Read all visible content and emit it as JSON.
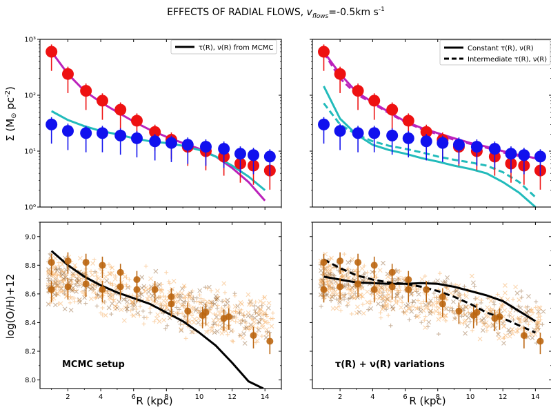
{
  "figure": {
    "title_main": "EFFECTS OF RADIAL FLOWS, ",
    "title_var": "v",
    "title_var_sub": "flows",
    "title_value": "=-0.5km s",
    "title_exp": "-1"
  },
  "axes": {
    "sigma_ylabel": "Σ (M",
    "sigma_ylabel_sub": "⊙",
    "sigma_ylabel_end": " pc",
    "sigma_ylabel_exp": "-2",
    "sigma_ylabel_close": ")",
    "oh_ylabel": "log(O/H)+12",
    "xlabel": "R (kpc)"
  },
  "legends": {
    "left": [
      {
        "label": "τ(R), ν(R) from MCMC",
        "style": "solid"
      }
    ],
    "right": [
      {
        "label": "Constant τ(R), ν(R)",
        "style": "solid"
      },
      {
        "label": "Intermediate τ(R), ν(R)",
        "style": "dashed"
      }
    ]
  },
  "annotations": {
    "left": "MCMC setup",
    "right": "τ(R) + ν(R) variations"
  },
  "colors": {
    "red_points": "#ee1111",
    "blue_points": "#1111ee",
    "magenta_line": "#bb22bb",
    "cyan_line": "#22bbbb",
    "oh_points": "#bb6611",
    "scatter_light": "#f5b26b",
    "scatter_dark": "#8b5a2b"
  },
  "chart_data": [
    {
      "panel": "top-left",
      "type": "scatter",
      "xlim": [
        0.3,
        15
      ],
      "ylim": [
        1,
        1000
      ],
      "yscale": "log",
      "xticks": [
        2,
        4,
        6,
        8,
        10,
        12,
        14
      ],
      "yticks": [
        1,
        10,
        100,
        1000
      ],
      "ytick_labels": [
        "10⁰",
        "10¹",
        "10²",
        "10³"
      ],
      "series": [
        {
          "kind": "points",
          "color": "red",
          "x": [
            1.0,
            2.0,
            3.1,
            4.1,
            5.2,
            6.2,
            7.3,
            8.3,
            9.3,
            10.4,
            11.5,
            12.5,
            13.3,
            14.3
          ],
          "y": [
            600,
            240,
            120,
            80,
            55,
            35,
            22,
            16,
            12,
            10,
            8,
            6,
            5.5,
            4.5
          ]
        },
        {
          "kind": "points",
          "color": "blue",
          "x": [
            1.0,
            2.0,
            3.1,
            4.1,
            5.2,
            6.2,
            7.3,
            8.3,
            9.3,
            10.4,
            11.5,
            12.5,
            13.3,
            14.3
          ],
          "y": [
            30,
            23,
            21,
            21,
            19,
            17,
            15,
            14,
            13,
            12,
            11,
            9,
            8.5,
            8
          ]
        },
        {
          "kind": "line",
          "color": "magenta",
          "style": "solid",
          "x": [
            1,
            2,
            3,
            4,
            5,
            6,
            7,
            8,
            9,
            10,
            11,
            12,
            13,
            14
          ],
          "y": [
            600,
            240,
            120,
            75,
            50,
            34,
            24,
            18,
            14,
            11,
            8,
            5,
            2.8,
            1.3
          ]
        },
        {
          "kind": "line",
          "color": "cyan",
          "style": "solid",
          "x": [
            1,
            2,
            3,
            4,
            5,
            6,
            7,
            8,
            9,
            10,
            11,
            12,
            13,
            14
          ],
          "y": [
            52,
            36,
            28,
            23,
            20,
            17,
            15,
            14,
            12.5,
            10.5,
            8,
            5.5,
            3.5,
            2
          ]
        }
      ]
    },
    {
      "panel": "top-right",
      "type": "scatter",
      "xlim": [
        0.3,
        15
      ],
      "ylim": [
        1,
        1000
      ],
      "yscale": "log",
      "xticks": [
        2,
        4,
        6,
        8,
        10,
        12,
        14
      ],
      "yticks": [
        1,
        10,
        100,
        1000
      ],
      "series": [
        {
          "kind": "points",
          "color": "red",
          "x": [
            1.0,
            2.0,
            3.1,
            4.1,
            5.2,
            6.2,
            7.3,
            8.3,
            9.3,
            10.4,
            11.5,
            12.5,
            13.3,
            14.3
          ],
          "y": [
            600,
            240,
            120,
            80,
            55,
            35,
            22,
            16,
            12,
            10,
            8,
            6,
            5.5,
            4.5
          ]
        },
        {
          "kind": "points",
          "color": "blue",
          "x": [
            1.0,
            2.0,
            3.1,
            4.1,
            5.2,
            6.2,
            7.3,
            8.3,
            9.3,
            10.4,
            11.5,
            12.5,
            13.3,
            14.3
          ],
          "y": [
            30,
            23,
            21,
            21,
            19,
            17,
            15,
            14,
            13,
            12,
            11,
            9,
            8.5,
            8
          ]
        },
        {
          "kind": "line",
          "color": "magenta",
          "style": "solid",
          "x": [
            1,
            2,
            3,
            4,
            5,
            6,
            7,
            8,
            9,
            10,
            11,
            12,
            13,
            14
          ],
          "y": [
            600,
            240,
            115,
            75,
            50,
            34,
            26,
            21,
            17,
            14,
            12,
            10,
            8.5,
            7.5
          ]
        },
        {
          "kind": "line",
          "color": "magenta",
          "style": "dashed",
          "x": [
            1,
            2,
            3,
            4,
            5,
            6,
            7,
            8,
            9,
            10,
            11,
            12,
            13,
            14
          ],
          "y": [
            580,
            200,
            105,
            72,
            48,
            33,
            25,
            20,
            16,
            13.5,
            11.5,
            9.5,
            8.2,
            7.5
          ]
        },
        {
          "kind": "line",
          "color": "cyan",
          "style": "solid",
          "x": [
            1,
            2,
            3,
            4,
            5,
            6,
            7,
            8,
            9,
            10,
            11,
            12,
            13,
            14
          ],
          "y": [
            145,
            38,
            20,
            13,
            10.5,
            9,
            7.5,
            6.5,
            5.5,
            4.8,
            4,
            2.8,
            1.8,
            1
          ]
        },
        {
          "kind": "line",
          "color": "cyan",
          "style": "dashed",
          "x": [
            1,
            2,
            3,
            4,
            5,
            6,
            7,
            8,
            9,
            10,
            11,
            12,
            13,
            14
          ],
          "y": [
            72,
            30,
            20,
            15,
            12.5,
            11,
            9.5,
            8,
            7,
            6.3,
            5.5,
            4.2,
            2.8,
            1.5
          ]
        }
      ]
    },
    {
      "panel": "bottom-left",
      "type": "scatter",
      "xlim": [
        0.3,
        15
      ],
      "ylim": [
        7.94,
        9.1
      ],
      "xticks": [
        2,
        4,
        6,
        8,
        10,
        12,
        14
      ],
      "yticks": [
        8.0,
        8.2,
        8.4,
        8.6,
        8.8,
        9.0
      ],
      "series": [
        {
          "kind": "points",
          "color": "oh",
          "x": [
            1.0,
            1.0,
            2.0,
            2.0,
            3.1,
            3.1,
            4.1,
            4.1,
            5.2,
            5.2,
            6.2,
            6.2,
            7.3,
            8.3,
            8.3,
            9.3,
            10.2,
            10.4,
            11.5,
            11.8,
            13.3,
            14.3
          ],
          "y": [
            8.82,
            8.63,
            8.83,
            8.65,
            8.82,
            8.67,
            8.8,
            8.63,
            8.75,
            8.65,
            8.7,
            8.63,
            8.63,
            8.58,
            8.53,
            8.48,
            8.45,
            8.47,
            8.43,
            8.44,
            8.31,
            8.27
          ]
        },
        {
          "kind": "line",
          "color": "black",
          "style": "solid",
          "x": [
            1,
            2,
            3,
            4,
            5,
            6,
            7,
            8,
            9,
            10,
            11,
            12,
            13,
            13.9
          ],
          "y": [
            8.9,
            8.8,
            8.72,
            8.66,
            8.61,
            8.57,
            8.53,
            8.47,
            8.41,
            8.33,
            8.24,
            8.12,
            7.99,
            7.94
          ]
        }
      ]
    },
    {
      "panel": "bottom-right",
      "type": "scatter",
      "xlim": [
        0.3,
        15
      ],
      "ylim": [
        7.94,
        9.1
      ],
      "xticks": [
        2,
        4,
        6,
        8,
        10,
        12,
        14
      ],
      "yticks": [
        8.0,
        8.2,
        8.4,
        8.6,
        8.8,
        9.0
      ],
      "series": [
        {
          "kind": "points",
          "color": "oh",
          "x": [
            1.0,
            1.0,
            2.0,
            2.0,
            3.1,
            3.1,
            4.1,
            4.1,
            5.2,
            5.2,
            6.2,
            6.2,
            7.3,
            8.3,
            8.3,
            9.3,
            10.2,
            10.4,
            11.5,
            11.8,
            13.3,
            14.3
          ],
          "y": [
            8.82,
            8.63,
            8.83,
            8.65,
            8.82,
            8.67,
            8.8,
            8.63,
            8.75,
            8.65,
            8.7,
            8.63,
            8.63,
            8.58,
            8.53,
            8.48,
            8.45,
            8.47,
            8.43,
            8.44,
            8.31,
            8.27
          ]
        },
        {
          "kind": "line",
          "color": "black",
          "style": "solid",
          "x": [
            1,
            2,
            3,
            4,
            5,
            6,
            7,
            8,
            9,
            10,
            11,
            12,
            13,
            14
          ],
          "y": [
            8.72,
            8.7,
            8.68,
            8.675,
            8.67,
            8.67,
            8.675,
            8.67,
            8.65,
            8.62,
            8.59,
            8.55,
            8.48,
            8.41
          ]
        },
        {
          "kind": "line",
          "color": "black",
          "style": "dashed",
          "x": [
            1,
            2,
            3,
            4,
            5,
            6,
            7,
            8,
            9,
            10,
            11,
            12,
            13,
            14
          ],
          "y": [
            8.84,
            8.78,
            8.73,
            8.7,
            8.68,
            8.67,
            8.65,
            8.62,
            8.58,
            8.53,
            8.47,
            8.43,
            8.38,
            8.33
          ]
        }
      ]
    }
  ]
}
